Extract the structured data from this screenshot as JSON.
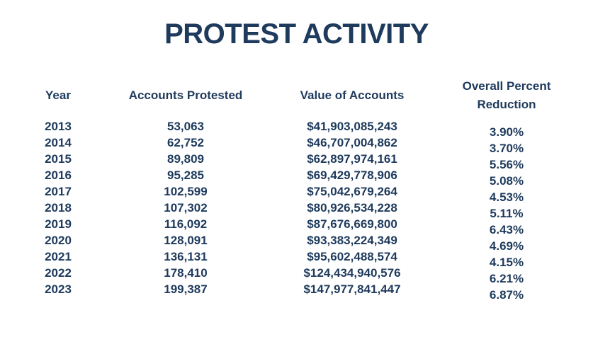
{
  "title": "PROTEST ACTIVITY",
  "colors": {
    "text": "#1e3a5c",
    "background": "#ffffff"
  },
  "table": {
    "headers": [
      "Year",
      "Accounts Protested",
      "Value of Accounts",
      "Overall Percent Reduction"
    ],
    "rows": [
      {
        "year": "2013",
        "accounts_protested": "53,063",
        "value_of_accounts": "$41,903,085,243",
        "overall_percent_reduction": "3.90%"
      },
      {
        "year": "2014",
        "accounts_protested": "62,752",
        "value_of_accounts": "$46,707,004,862",
        "overall_percent_reduction": "3.70%"
      },
      {
        "year": "2015",
        "accounts_protested": "89,809",
        "value_of_accounts": "$62,897,974,161",
        "overall_percent_reduction": "5.56%"
      },
      {
        "year": "2016",
        "accounts_protested": "95,285",
        "value_of_accounts": "$69,429,778,906",
        "overall_percent_reduction": "5.08%"
      },
      {
        "year": "2017",
        "accounts_protested": "102,599",
        "value_of_accounts": "$75,042,679,264",
        "overall_percent_reduction": "4.53%"
      },
      {
        "year": "2018",
        "accounts_protested": "107,302",
        "value_of_accounts": "$80,926,534,228",
        "overall_percent_reduction": "5.11%"
      },
      {
        "year": "2019",
        "accounts_protested": "116,092",
        "value_of_accounts": "$87,676,669,800",
        "overall_percent_reduction": "6.43%"
      },
      {
        "year": "2020",
        "accounts_protested": "128,091",
        "value_of_accounts": "$93,383,224,349",
        "overall_percent_reduction": "4.69%"
      },
      {
        "year": "2021",
        "accounts_protested": "136,131",
        "value_of_accounts": "$95,602,488,574",
        "overall_percent_reduction": "4.15%"
      },
      {
        "year": "2022",
        "accounts_protested": "178,410",
        "value_of_accounts": "$124,434,940,576",
        "overall_percent_reduction": "6.21%"
      },
      {
        "year": "2023",
        "accounts_protested": "199,387",
        "value_of_accounts": "$147,977,841,447",
        "overall_percent_reduction": "6.87%"
      }
    ]
  },
  "chart_data": {
    "type": "table",
    "title": "PROTEST ACTIVITY",
    "columns": [
      "Year",
      "Accounts Protested",
      "Value of Accounts",
      "Overall Percent Reduction"
    ],
    "years": [
      2013,
      2014,
      2015,
      2016,
      2017,
      2018,
      2019,
      2020,
      2021,
      2022,
      2023
    ],
    "accounts_protested": [
      53063,
      62752,
      89809,
      95285,
      102599,
      107302,
      116092,
      128091,
      136131,
      178410,
      199387
    ],
    "value_of_accounts": [
      41903085243,
      46707004862,
      62897974161,
      69429778906,
      75042679264,
      80926534228,
      87676669800,
      93383224349,
      95602488574,
      124434940576,
      147977841447
    ],
    "overall_percent_reduction_pct": [
      3.9,
      3.7,
      5.56,
      5.08,
      4.53,
      5.11,
      6.43,
      4.69,
      4.15,
      6.21,
      6.87
    ]
  }
}
